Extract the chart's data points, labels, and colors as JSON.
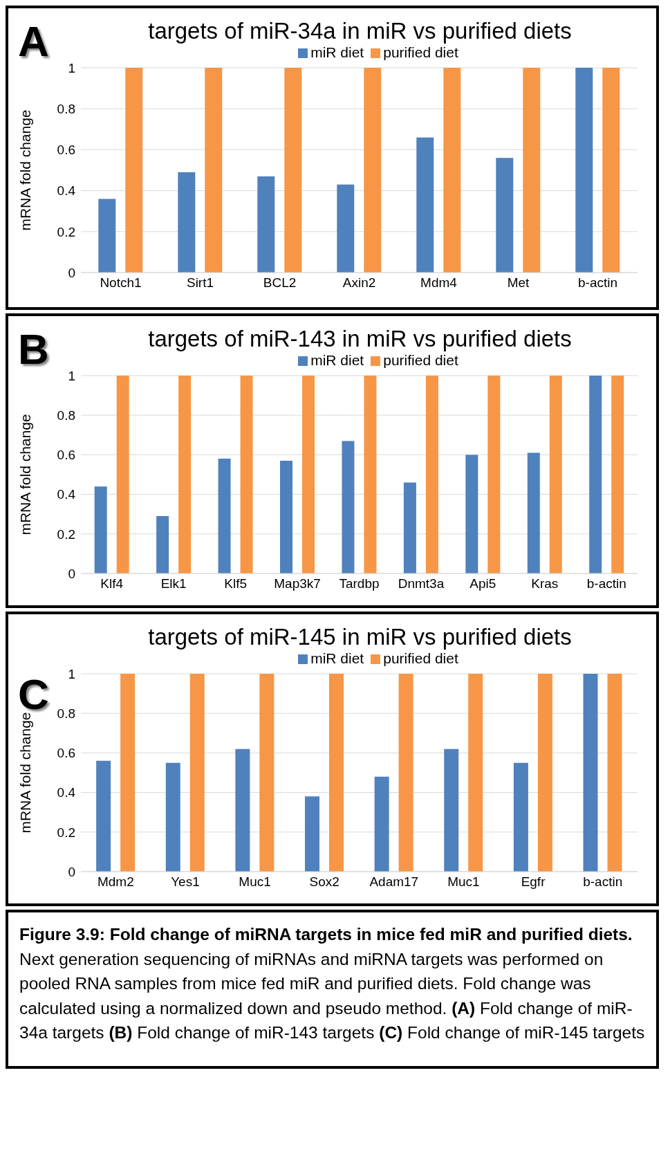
{
  "chart_data": [
    {
      "type": "bar",
      "title": "targets of miR-34a in miR vs purified diets",
      "ylabel": "mRNA fold change",
      "annotations": [
        "A"
      ],
      "categories": [
        "Notch1",
        "Sirt1",
        "BCL2",
        "Axin2",
        "Mdm4",
        "Met",
        "b-actin"
      ],
      "series": [
        {
          "name": "miR diet",
          "color": "#4f81bd",
          "values": [
            0.36,
            0.49,
            0.47,
            0.43,
            0.66,
            0.56,
            1
          ]
        },
        {
          "name": "purified diet",
          "color": "#f79646",
          "values": [
            1,
            1,
            1,
            1,
            1,
            1,
            1
          ]
        }
      ],
      "ylim": [
        0,
        1
      ],
      "yticks": [
        0,
        0.2,
        0.4,
        0.6,
        0.8,
        1
      ],
      "grid": "y",
      "legend": "top"
    },
    {
      "type": "bar",
      "title": "targets of miR-143 in miR vs purified diets",
      "ylabel": "mRNA fold change",
      "annotations": [
        "B"
      ],
      "categories": [
        "Klf4",
        "Elk1",
        "Klf5",
        "Map3k7",
        "Tardbp",
        "Dnmt3a",
        "Api5",
        "Kras",
        "b-actin"
      ],
      "series": [
        {
          "name": "miR diet",
          "color": "#4f81bd",
          "values": [
            0.44,
            0.29,
            0.58,
            0.57,
            0.67,
            0.46,
            0.6,
            0.61,
            1
          ]
        },
        {
          "name": "purified diet",
          "color": "#f79646",
          "values": [
            1,
            1,
            1,
            1,
            1,
            1,
            1,
            1,
            1
          ]
        }
      ],
      "ylim": [
        0,
        1
      ],
      "yticks": [
        0,
        0.2,
        0.4,
        0.6,
        0.8,
        1
      ],
      "grid": "y",
      "legend": "top"
    },
    {
      "type": "bar",
      "title": "targets of miR-145 in miR vs purified diets",
      "ylabel": "mRNA fold change",
      "annotations": [
        "C",
        "Figure 3.9: Fold change of miRNA targets in mice fed miR and purified diets.",
        "Next generation sequencing of miRNAs and miRNA targets was performed on pooled RNA samples from mice fed miR and purified diets.  Fold change was calculated using a normalized down and pseudo method.",
        "(A)",
        "Fold change of miR-34a targets",
        "(B)",
        "Fold change of miR-143 targets",
        "(C)",
        "Fold change of miR-145 targets"
      ],
      "categories": [
        "Mdm2",
        "Yes1",
        "Muc1",
        "Sox2",
        "Adam17",
        "Muc1",
        "Egfr",
        "b-actin"
      ],
      "series": [
        {
          "name": "miR diet",
          "color": "#4f81bd",
          "values": [
            0.56,
            0.55,
            0.62,
            0.38,
            0.48,
            0.62,
            0.55,
            1
          ]
        },
        {
          "name": "purified diet",
          "color": "#f79646",
          "values": [
            1,
            1,
            1,
            1,
            1,
            1,
            1,
            1
          ]
        }
      ],
      "ylim": [
        0,
        1
      ],
      "yticks": [
        0,
        0.2,
        0.4,
        0.6,
        0.8,
        1
      ],
      "grid": "y",
      "legend": "top"
    }
  ]
}
